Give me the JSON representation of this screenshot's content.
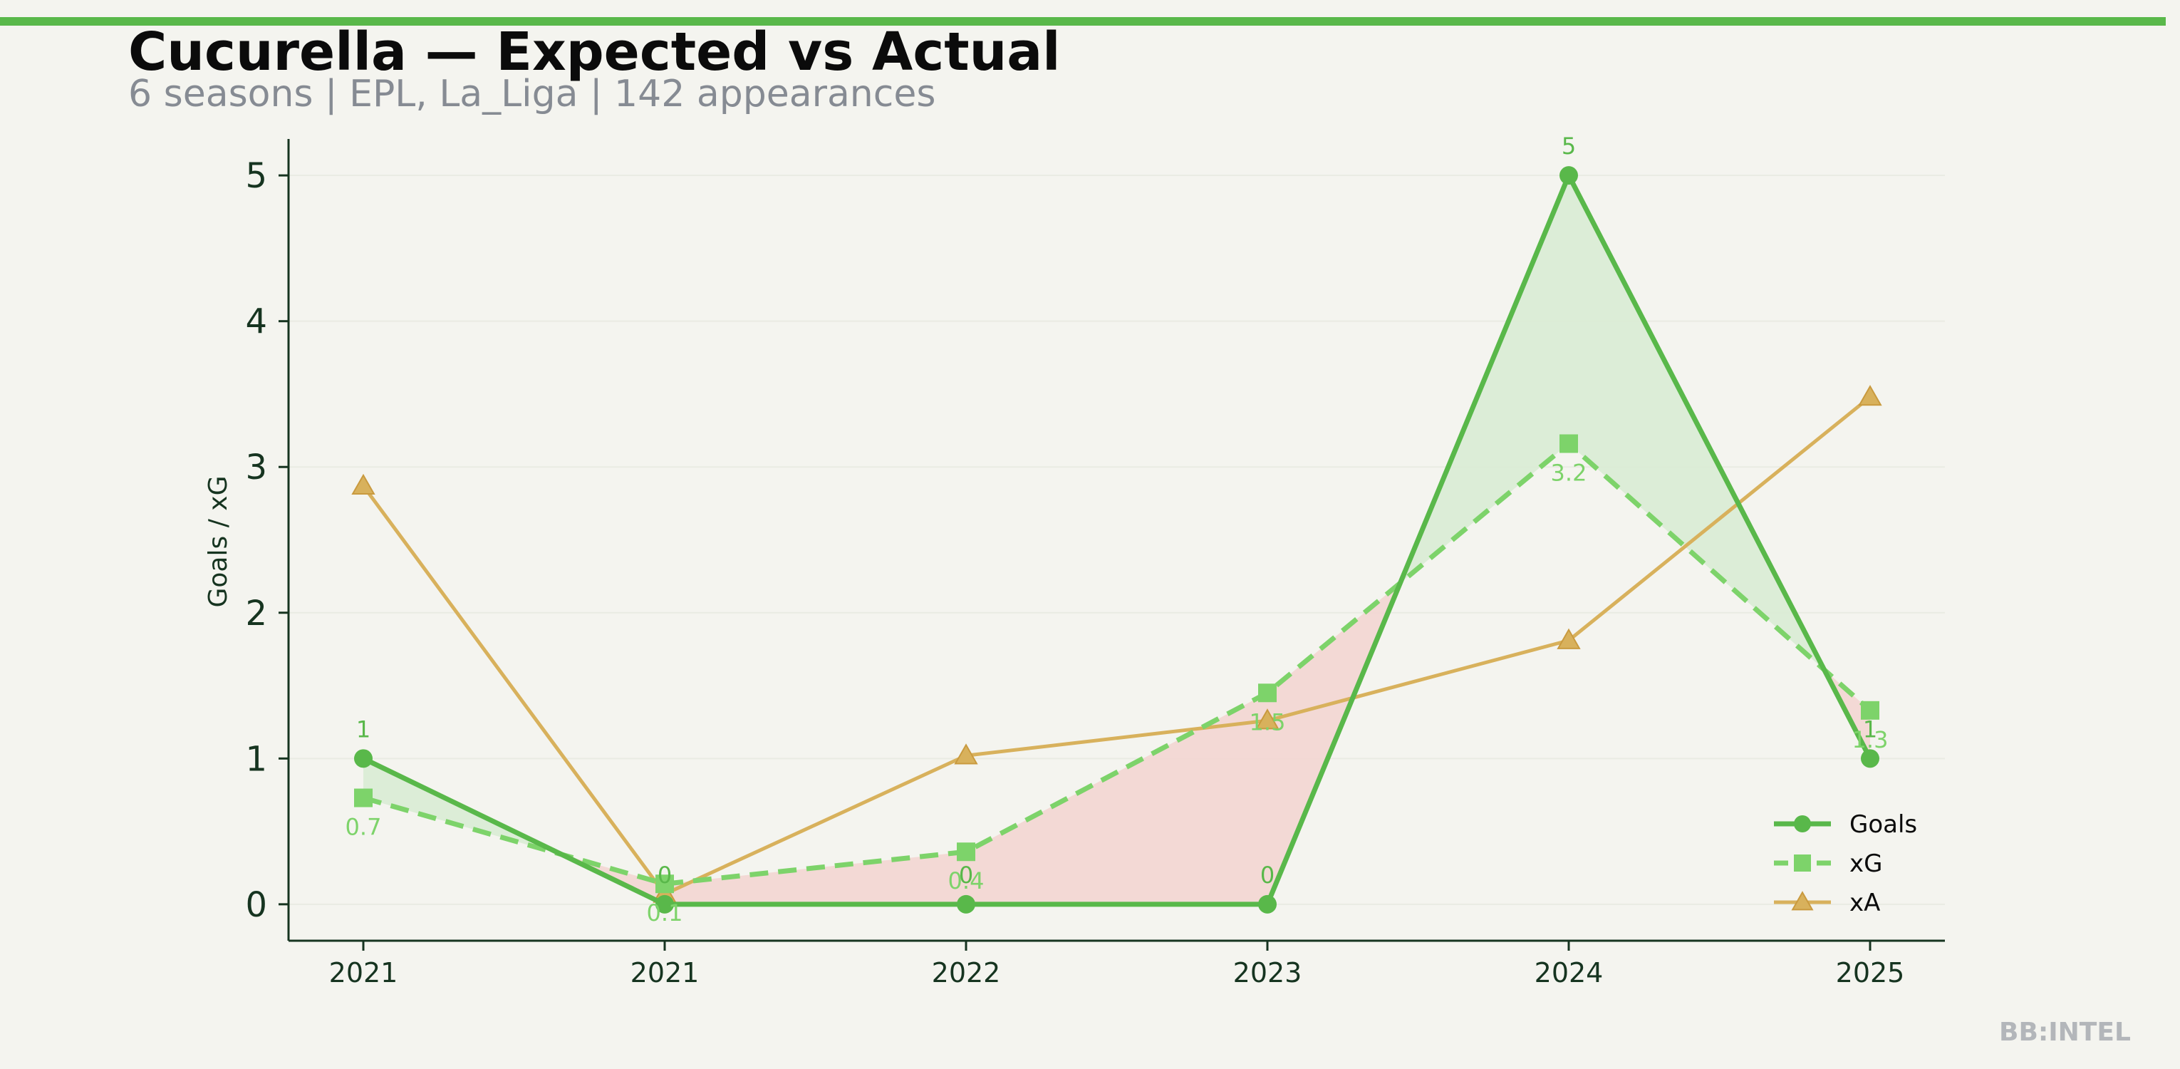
{
  "header": {
    "title": "Cucurella — Expected vs Actual",
    "subtitle": "6 seasons | EPL, La_Liga | 142 appearances"
  },
  "brand": "BB:INTEL",
  "colors": {
    "goals": "#59b84a",
    "xg": "#7dd36a",
    "xa": "#d8b15c",
    "over_fill": "#d9ecd4",
    "under_fill": "#f3d6d2",
    "axis": "#163420"
  },
  "chart_data": {
    "type": "line",
    "categories": [
      "2021",
      "2021",
      "2022",
      "2023",
      "2024",
      "2025"
    ],
    "ylabel": "Goals / xG",
    "ylim": [
      -0.25,
      5.25
    ],
    "yticks": [
      0,
      1,
      2,
      3,
      4,
      5
    ],
    "grid": true,
    "legend_position": "bottom-right",
    "series": [
      {
        "name": "Goals",
        "values": [
          1,
          0,
          0,
          0,
          5,
          1
        ],
        "labels": [
          "1",
          "0",
          "0",
          "0",
          "5",
          "1"
        ],
        "style": "solid",
        "marker": "circle"
      },
      {
        "name": "xG",
        "values": [
          0.73,
          0.14,
          0.36,
          1.45,
          3.16,
          1.33
        ],
        "labels": [
          "0.7",
          "0.1",
          "0.4",
          "1.5",
          "3.2",
          "1.3"
        ],
        "style": "dashed",
        "marker": "square"
      },
      {
        "name": "xA",
        "values": [
          2.87,
          0.07,
          1.02,
          1.26,
          1.81,
          3.48
        ],
        "style": "solid",
        "marker": "triangle"
      }
    ]
  }
}
